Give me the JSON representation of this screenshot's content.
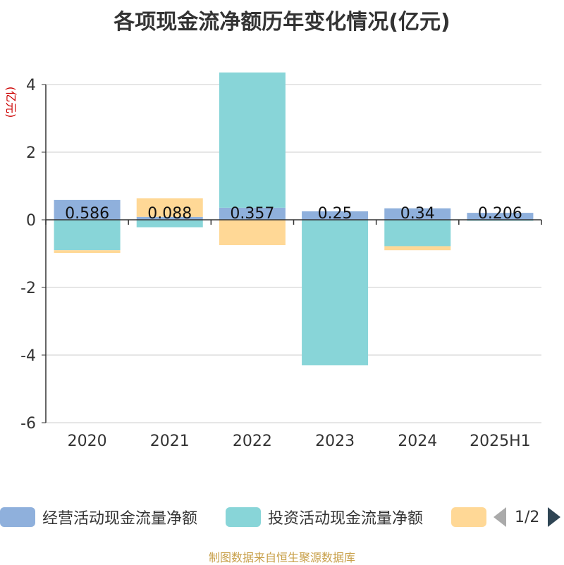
{
  "title": "各项现金流净额历年变化情况(亿元)",
  "source": "制图数据来自恒生聚源数据库",
  "legend": {
    "items": [
      {
        "label": "经营活动现金流量净额",
        "color": "#8fb0dc"
      },
      {
        "label": "投资活动现金流量净额",
        "color": "#88d5d8"
      },
      {
        "label": "",
        "color": "#ffd896"
      }
    ],
    "page": "1/2"
  },
  "chart_data": {
    "type": "bar",
    "stacked": true,
    "ylabel": "(亿元)",
    "ylim": [
      -6,
      4
    ],
    "yticks": [
      4,
      2,
      0,
      -2,
      -4,
      -6
    ],
    "categories": [
      "2020",
      "2021",
      "2022",
      "2023",
      "2024",
      "2025H1"
    ],
    "series": [
      {
        "name": "经营活动现金流量净额",
        "color": "#8fb0dc",
        "values": [
          0.586,
          0.088,
          0.357,
          0.25,
          0.34,
          0.206
        ],
        "labels": [
          "0.586",
          "0.088",
          "0.357",
          "0.25",
          "0.34",
          "0.206"
        ]
      },
      {
        "name": "投资活动现金流量净额",
        "color": "#88d5d8",
        "values": [
          -0.9,
          -0.22,
          4.0,
          -4.3,
          -0.78,
          -0.03
        ]
      },
      {
        "name": "",
        "color": "#ffd896",
        "values": [
          -0.08,
          0.55,
          -0.75,
          0.0,
          -0.12,
          0.0
        ]
      }
    ],
    "grid": true
  }
}
